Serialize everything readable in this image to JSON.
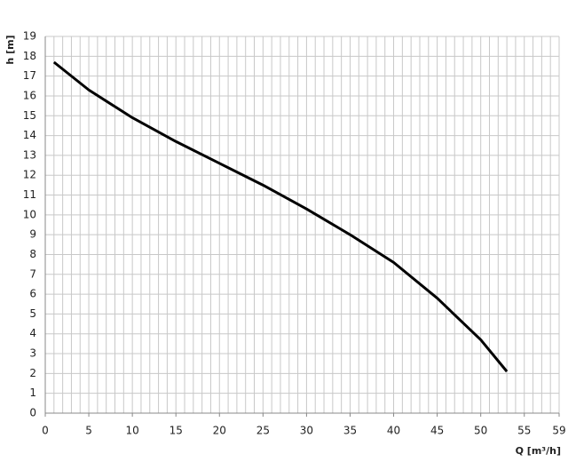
{
  "chart_data": {
    "type": "line",
    "x_label": "Q [m³/h]",
    "y_label": "h [m]",
    "x": [
      1,
      5,
      10,
      15,
      20,
      25,
      30,
      35,
      40,
      45,
      50,
      53
    ],
    "series": [
      {
        "color": "#000000",
        "values": [
          17.7,
          16.3,
          14.9,
          13.7,
          12.6,
          11.5,
          10.3,
          9.0,
          7.6,
          5.8,
          3.7,
          2.1
        ]
      }
    ],
    "xlim": [
      0,
      59
    ],
    "ylim": [
      0,
      19
    ],
    "xticks": [
      0,
      5,
      10,
      15,
      20,
      25,
      30,
      35,
      40,
      45,
      50,
      55,
      59
    ],
    "yticks": [
      0,
      1,
      2,
      3,
      4,
      5,
      6,
      7,
      8,
      9,
      10,
      11,
      12,
      13,
      14,
      15,
      16,
      17,
      18,
      19
    ],
    "grid": true,
    "xgrid_step": 1
  }
}
